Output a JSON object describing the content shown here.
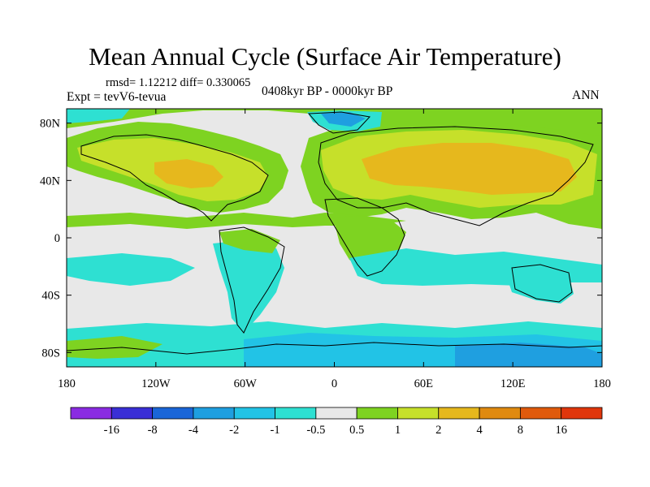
{
  "title": "Mean Annual Cycle (Surface Air Temperature)",
  "stats": "rmsd= 1.12212 diff= 0.330065",
  "experiment": "Expt = tevV6-tevua",
  "period": "0408kyr BP - 0000kyr BP",
  "season": "ANN",
  "axes": {
    "x_ticks": [
      "180",
      "120W",
      "60W",
      "0",
      "60E",
      "120E",
      "180"
    ],
    "y_ticks": [
      "80N",
      "40N",
      "0",
      "40S",
      "80S"
    ]
  },
  "colorbar": {
    "labels": [
      "-16",
      "-8",
      "-4",
      "-2",
      "-1",
      "-0.5",
      "0.5",
      "1",
      "2",
      "4",
      "8",
      "16"
    ],
    "colors": [
      "#8a2be2",
      "#3a2fd6",
      "#1a66d8",
      "#1f9fe0",
      "#22c3e6",
      "#2ee0d2",
      "#e8e8e8",
      "#7ed321",
      "#c6e02a",
      "#e6b81d",
      "#e08a10",
      "#e05a0c",
      "#e0360c"
    ]
  },
  "colors": {
    "background": "#ffffff",
    "neutral": "#e8e8e8",
    "warm_light": "#7ed321",
    "warm_mid": "#c6e02a",
    "warm_high": "#e6b81d",
    "cool_light": "#2ee0d2",
    "cool_mid": "#22c3e6",
    "cool_high": "#1f9fe0",
    "coast": "#000000"
  }
}
